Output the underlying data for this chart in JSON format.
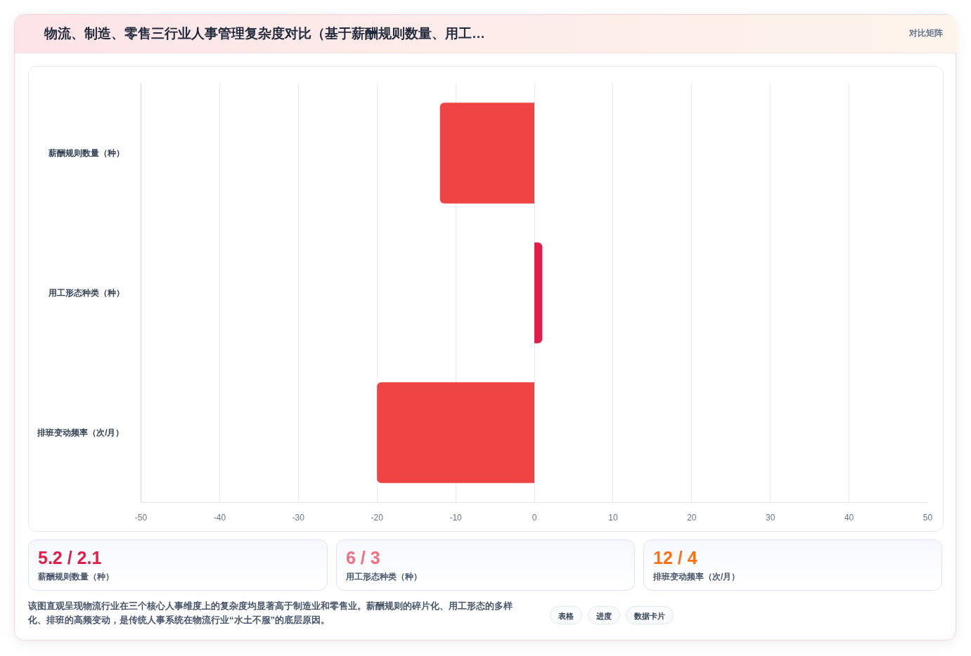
{
  "chart_data": {
    "type": "bar",
    "orientation": "horizontal",
    "title": "物流、制造、零售三行业人事管理复杂度对比（基于薪酬规则数量、用工…",
    "categories": [
      "薪酬规则数量（种）",
      "用工形态种类（种）",
      "排班变动频率（次/月）"
    ],
    "values": [
      -12,
      1,
      -20
    ],
    "colors": [
      "#ef4444",
      "#e11d48",
      "#ef4444"
    ],
    "xlim": [
      -50,
      50
    ],
    "xticks": [
      -50,
      -40,
      -30,
      -20,
      -10,
      0,
      10,
      20,
      30,
      40,
      50
    ],
    "grid": "x",
    "annotations": [
      "对比矩阵",
      "5.2 / 2.1",
      "薪酬规则数量（种）",
      "6 / 3",
      "用工形态种类（种）",
      "12 / 4",
      "排班变动频率（次/月）",
      "该图直观呈现物流行业在三个核心人事维度上的复杂度均显著高于制造业和零售业。薪酬规则的碎片化、用工形态的多样化、排班的高频变动，是传统人事系统在物流行业“水土不服”的底层原因。",
      "表格",
      "进度",
      "数据卡片"
    ]
  }
}
